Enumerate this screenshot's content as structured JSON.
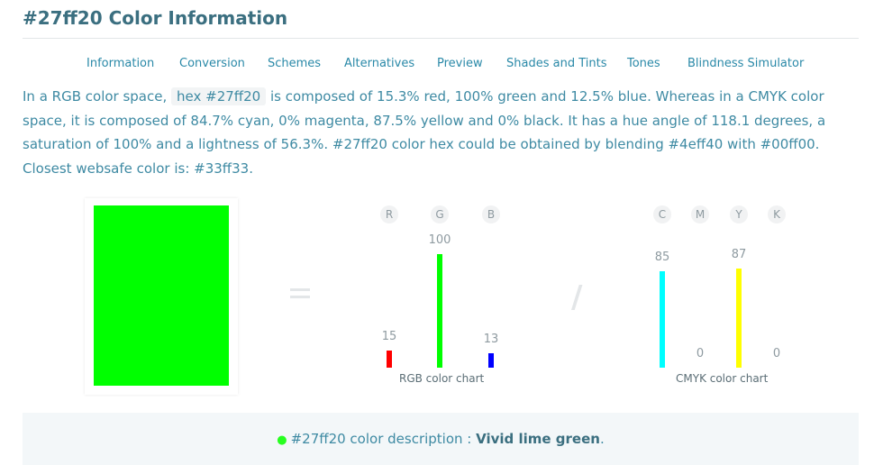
{
  "page": {
    "title": "#27ff20 Color Information"
  },
  "nav": {
    "items": [
      "Information",
      "Conversion",
      "Schemes",
      "Alternatives",
      "Preview",
      "Shades and Tints",
      "Tones",
      "Blindness Simulator"
    ]
  },
  "paragraph": {
    "t1": "In a RGB color space, ",
    "chip": "hex #27ff20",
    "t2": " is composed of 15.3% red, 100% green and 12.5% blue. Whereas in a CMYK color space, it is composed of 84.7% cyan, 0% magenta, 87.5% yellow and 0% black. It has a hue angle of 118.1 degrees, a saturation of 100% and a lightness of 56.3%. #27ff20 color hex could be obtained by blending #4eff40 with #00ff00. Closest websafe color is: #33ff33."
  },
  "swatch": {
    "color": "#00ff00"
  },
  "symbols": {
    "slash": "/"
  },
  "chart_data": [
    {
      "type": "bar",
      "title": "RGB color chart",
      "categories": [
        "R",
        "G",
        "B"
      ],
      "values": [
        15,
        100,
        13
      ],
      "colors": [
        "#ff0000",
        "#00ff00",
        "#0000ff"
      ],
      "ylim": [
        0,
        100
      ]
    },
    {
      "type": "bar",
      "title": "CMYK color chart",
      "categories": [
        "C",
        "M",
        "Y",
        "K"
      ],
      "values": [
        85,
        0,
        87,
        0
      ],
      "colors": [
        "#00ffff",
        "#ff00ff",
        "#ffff00",
        "#000000"
      ],
      "ylim": [
        0,
        100
      ]
    }
  ],
  "description": {
    "dot": "●",
    "prefix": "#27ff20 color description : ",
    "value": "Vivid lime green",
    "suffix": "."
  }
}
